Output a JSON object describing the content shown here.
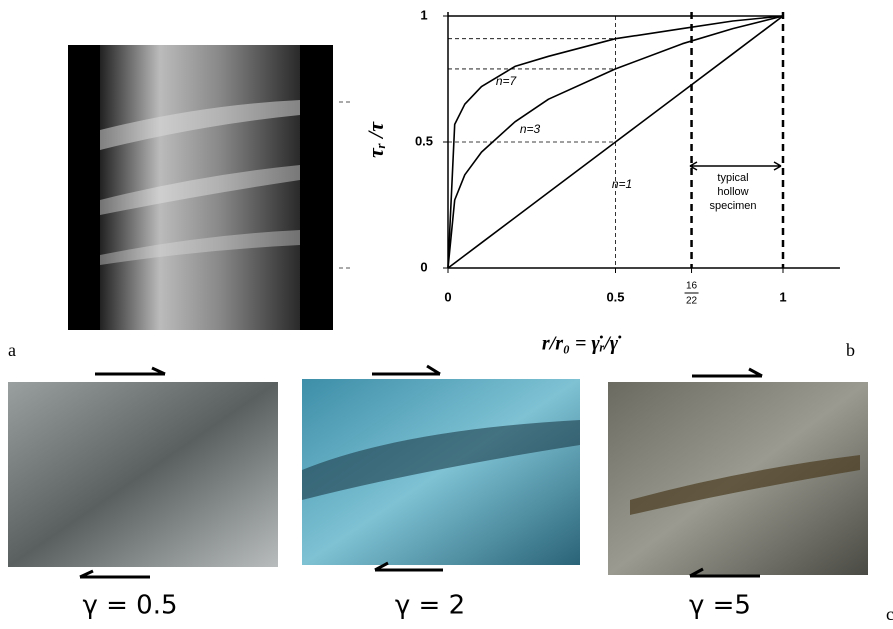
{
  "panel_labels": {
    "a": "a",
    "b": "b",
    "c": "c"
  },
  "chart_data": {
    "type": "line",
    "ylabel": "τᵣ /τ",
    "xlabel": "r/r₀ = γ̇ᵣ/γ̇",
    "x": [
      0,
      0.02,
      0.05,
      0.1,
      0.2,
      0.3,
      0.5,
      0.7,
      0.85,
      1
    ],
    "series": [
      {
        "name": "n=7",
        "color": "#000000",
        "values": [
          0,
          0.57,
          0.65,
          0.72,
          0.8,
          0.84,
          0.91,
          0.95,
          0.98,
          1
        ]
      },
      {
        "name": "n=3",
        "color": "#000000",
        "values": [
          0,
          0.27,
          0.37,
          0.46,
          0.58,
          0.67,
          0.79,
          0.89,
          0.95,
          1
        ]
      },
      {
        "name": "n=1",
        "color": "#000000",
        "values": [
          0,
          0.02,
          0.05,
          0.1,
          0.2,
          0.3,
          0.5,
          0.7,
          0.85,
          1
        ]
      }
    ],
    "xlim": [
      0,
      1.17
    ],
    "ylim": [
      0,
      1
    ],
    "xticks": [
      0,
      0.5,
      {
        "value": 0.727,
        "label": "16/22"
      },
      1
    ],
    "yticks": [
      0,
      0.5,
      1
    ],
    "annotation": [
      "typical",
      "hollow",
      "specimen"
    ]
  },
  "photos": {
    "captions": [
      "γ = 0.5",
      "γ = 2",
      "γ =5"
    ]
  }
}
